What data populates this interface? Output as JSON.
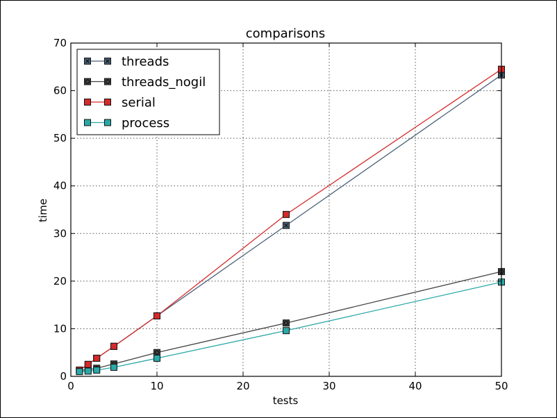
{
  "chart_data": {
    "type": "line",
    "title": "comparisons",
    "xlabel": "tests",
    "ylabel": "time",
    "xlim": [
      0,
      50
    ],
    "ylim": [
      0,
      70
    ],
    "x_ticks": [
      0,
      10,
      20,
      30,
      40,
      50
    ],
    "y_ticks": [
      0,
      10,
      20,
      30,
      40,
      50,
      60,
      70
    ],
    "x_tick_labels": [
      "0",
      "10",
      "20",
      "30",
      "40",
      "50"
    ],
    "y_tick_labels": [
      "0",
      "10",
      "20",
      "30",
      "40",
      "50",
      "60",
      "70"
    ],
    "grid": true,
    "legend_position": "top-left",
    "x": [
      1,
      2,
      3,
      5,
      10,
      25,
      50
    ],
    "series": [
      {
        "name": "threads",
        "values": [
          1.3,
          2.5,
          3.8,
          6.3,
          12.7,
          31.7,
          63.3
        ],
        "color": "#4a6178",
        "marker": "x-square"
      },
      {
        "name": "threads_nogil",
        "values": [
          1.3,
          1.4,
          1.7,
          2.6,
          5.0,
          11.2,
          22.0
        ],
        "color": "#444444",
        "marker": "circle-square"
      },
      {
        "name": "serial",
        "values": [
          1.3,
          2.5,
          3.8,
          6.3,
          12.7,
          34.0,
          64.5
        ],
        "color": "#d42a2a",
        "marker": "square"
      },
      {
        "name": "process",
        "values": [
          1.0,
          1.1,
          1.3,
          1.9,
          3.8,
          9.6,
          19.8
        ],
        "color": "#2ba8a8",
        "marker": "square"
      }
    ]
  }
}
